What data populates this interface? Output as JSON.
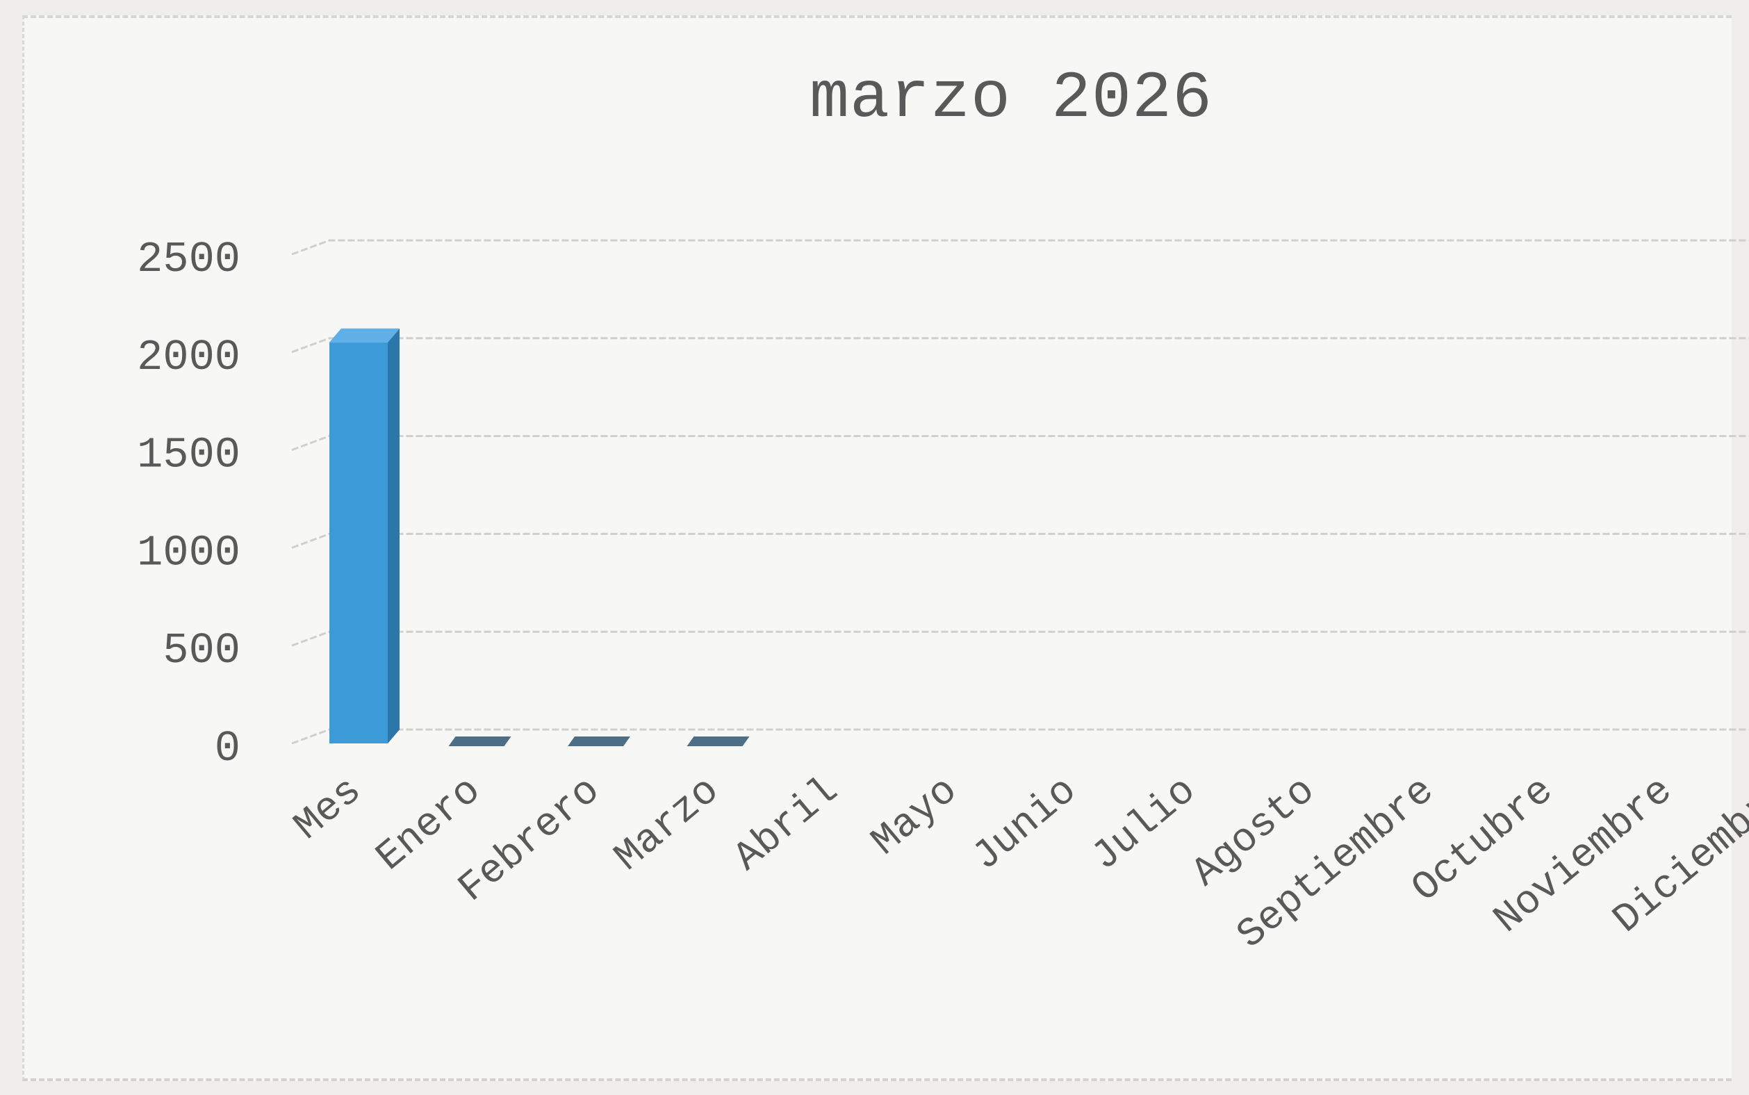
{
  "chart_data": {
    "type": "bar",
    "title": "marzo 2026",
    "xlabel": "",
    "ylabel": "",
    "categories": [
      "Mes",
      "Enero",
      "Febrero",
      "Marzo",
      "Abril",
      "Mayo",
      "Junio",
      "Julio",
      "Agosto",
      "Septiembre",
      "Octubre",
      "Noviembre",
      "Diciembre"
    ],
    "values": [
      2050,
      0,
      0,
      0,
      null,
      null,
      null,
      null,
      null,
      null,
      null,
      null,
      null
    ],
    "ylim": [
      0,
      2500
    ],
    "yticks": [
      "2500",
      "2000",
      "1500",
      "1000",
      "500",
      "0"
    ],
    "grid": true,
    "legend": "none",
    "bar_color": "#3d9ad8",
    "bar_side_color": "#2c77aa",
    "bar_top_color": "#5fb0e6"
  }
}
